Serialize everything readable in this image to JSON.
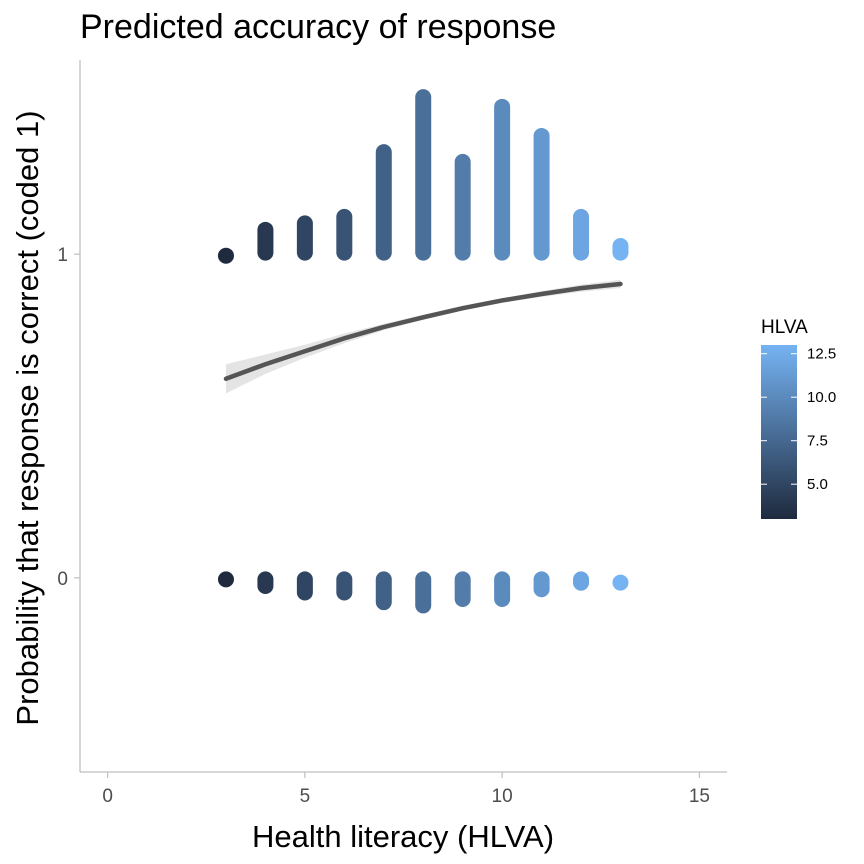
{
  "chart_data": {
    "type": "scatter",
    "title": "Predicted accuracy of response",
    "xlabel": "Health literacy (HLVA)",
    "ylabel": "Probability that response is correct (coded 1)",
    "xlim": [
      -0.7,
      15.7
    ],
    "ylim": [
      -0.6,
      1.6
    ],
    "x_ticks": [
      0,
      5,
      10,
      15
    ],
    "x_tick_labels": [
      "0",
      "5",
      "10",
      "15"
    ],
    "y_ticks": [
      0,
      1
    ],
    "y_tick_labels": [
      "0",
      "1"
    ],
    "grid": false,
    "legend": {
      "title": "HLVA",
      "position": "right",
      "range": [
        3,
        13
      ],
      "ticks": [
        5.0,
        7.5,
        10.0,
        12.5
      ],
      "tick_labels": [
        "5.0",
        "7.5",
        "10.0",
        "12.5"
      ],
      "color_low": "#1f2a3e",
      "color_high": "#75b3f3"
    },
    "series": [
      {
        "type": "jitter-points",
        "note_color": "colored by HLVA",
        "points": [
          {
            "x": 3,
            "y_center": 1,
            "y_min": 0.98,
            "y_max": 1.02
          },
          {
            "x": 4,
            "y_center": 1,
            "y_min": 0.98,
            "y_max": 1.1
          },
          {
            "x": 5,
            "y_center": 1,
            "y_min": 0.98,
            "y_max": 1.12
          },
          {
            "x": 6,
            "y_center": 1,
            "y_min": 0.98,
            "y_max": 1.14
          },
          {
            "x": 7,
            "y_center": 1,
            "y_min": 0.98,
            "y_max": 1.34
          },
          {
            "x": 8,
            "y_center": 1,
            "y_min": 0.98,
            "y_max": 1.51
          },
          {
            "x": 9,
            "y_center": 1,
            "y_min": 0.98,
            "y_max": 1.31
          },
          {
            "x": 10,
            "y_center": 1,
            "y_min": 0.98,
            "y_max": 1.48
          },
          {
            "x": 11,
            "y_center": 1,
            "y_min": 0.98,
            "y_max": 1.39
          },
          {
            "x": 12,
            "y_center": 1,
            "y_min": 0.98,
            "y_max": 1.14
          },
          {
            "x": 13,
            "y_center": 1,
            "y_min": 0.98,
            "y_max": 1.05
          },
          {
            "x": 3,
            "y_center": 0,
            "y_min": -0.02,
            "y_max": 0.02
          },
          {
            "x": 4,
            "y_center": 0,
            "y_min": -0.05,
            "y_max": 0.02
          },
          {
            "x": 5,
            "y_center": 0,
            "y_min": -0.07,
            "y_max": 0.02
          },
          {
            "x": 6,
            "y_center": 0,
            "y_min": -0.07,
            "y_max": 0.02
          },
          {
            "x": 7,
            "y_center": 0,
            "y_min": -0.1,
            "y_max": 0.02
          },
          {
            "x": 8,
            "y_center": 0,
            "y_min": -0.11,
            "y_max": 0.02
          },
          {
            "x": 9,
            "y_center": 0,
            "y_min": -0.09,
            "y_max": 0.02
          },
          {
            "x": 10,
            "y_center": 0,
            "y_min": -0.09,
            "y_max": 0.02
          },
          {
            "x": 11,
            "y_center": 0,
            "y_min": -0.06,
            "y_max": 0.02
          },
          {
            "x": 12,
            "y_center": 0,
            "y_min": -0.04,
            "y_max": 0.02
          },
          {
            "x": 13,
            "y_center": 0,
            "y_min": -0.01,
            "y_max": 0.01
          }
        ]
      },
      {
        "type": "line",
        "smooth": true,
        "color": "#555555",
        "x": [
          3,
          4,
          5,
          6,
          7,
          8,
          9,
          10,
          11,
          12,
          13
        ],
        "y": [
          0.615,
          0.66,
          0.7,
          0.74,
          0.775,
          0.805,
          0.833,
          0.857,
          0.877,
          0.895,
          0.908
        ],
        "ci_low": [
          0.57,
          0.63,
          0.68,
          0.725,
          0.765,
          0.797,
          0.826,
          0.85,
          0.868,
          0.884,
          0.895
        ],
        "ci_high": [
          0.66,
          0.69,
          0.72,
          0.755,
          0.785,
          0.813,
          0.84,
          0.864,
          0.886,
          0.906,
          0.921
        ]
      }
    ]
  }
}
